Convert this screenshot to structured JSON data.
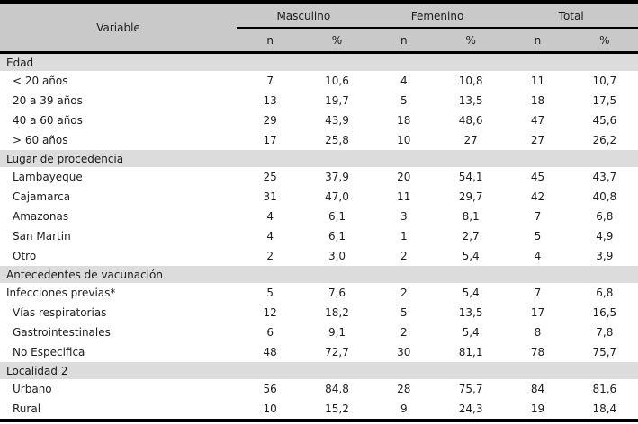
{
  "table": {
    "header": {
      "variable_label": "Variable",
      "groups": [
        {
          "label": "Masculino",
          "subcols": [
            "n",
            "%"
          ]
        },
        {
          "label": "Femenino",
          "subcols": [
            "n",
            "%"
          ]
        },
        {
          "label": "Total",
          "subcols": [
            "n",
            "%"
          ]
        }
      ]
    },
    "sections": [
      {
        "title": "Edad",
        "rows": [
          {
            "label": "< 20 años",
            "indent": 1,
            "values": [
              "7",
              "10,6",
              "4",
              "10,8",
              "11",
              "10,7"
            ]
          },
          {
            "label": "20 a 39 años",
            "indent": 1,
            "values": [
              "13",
              "19,7",
              "5",
              "13,5",
              "18",
              "17,5"
            ]
          },
          {
            "label": "40 a 60 años",
            "indent": 1,
            "values": [
              "29",
              "43,9",
              "18",
              "48,6",
              "47",
              "45,6"
            ]
          },
          {
            "label": "> 60 años",
            "indent": 1,
            "values": [
              "17",
              "25,8",
              "10",
              "27",
              "27",
              "26,2"
            ]
          }
        ]
      },
      {
        "title": "Lugar de procedencia",
        "rows": [
          {
            "label": "Lambayeque",
            "indent": 1,
            "values": [
              "25",
              "37,9",
              "20",
              "54,1",
              "45",
              "43,7"
            ]
          },
          {
            "label": "Cajamarca",
            "indent": 1,
            "values": [
              "31",
              "47,0",
              "11",
              "29,7",
              "42",
              "40,8"
            ]
          },
          {
            "label": "Amazonas",
            "indent": 1,
            "values": [
              "4",
              "6,1",
              "3",
              "8,1",
              "7",
              "6,8"
            ]
          },
          {
            "label": "San Martin",
            "indent": 1,
            "values": [
              "4",
              "6,1",
              "1",
              "2,7",
              "5",
              "4,9"
            ]
          },
          {
            "label": "Otro",
            "indent": 1,
            "values": [
              "2",
              "3,0",
              "2",
              "5,4",
              "4",
              "3,9"
            ]
          }
        ]
      },
      {
        "title": "Antecedentes de vacunación",
        "rows": [
          {
            "label": "Infecciones previas*",
            "indent": 0,
            "values": [
              "5",
              "7,6",
              "2",
              "5,4",
              "7",
              "6,8"
            ]
          },
          {
            "label": "Vías respiratorias",
            "indent": 1,
            "values": [
              "12",
              "18,2",
              "5",
              "13,5",
              "17",
              "16,5"
            ]
          },
          {
            "label": "Gastrointestinales",
            "indent": 1,
            "values": [
              "6",
              "9,1",
              "2",
              "5,4",
              "8",
              "7,8"
            ]
          },
          {
            "label": "No Especifica",
            "indent": 1,
            "values": [
              "48",
              "72,7",
              "30",
              "81,1",
              "78",
              "75,7"
            ]
          }
        ]
      },
      {
        "title": "Localidad 2",
        "rows": [
          {
            "label": "Urbano",
            "indent": 1,
            "values": [
              "56",
              "84,8",
              "28",
              "75,7",
              "84",
              "81,6"
            ]
          },
          {
            "label": "Rural",
            "indent": 1,
            "values": [
              "10",
              "15,2",
              "9",
              "24,3",
              "19",
              "18,4"
            ]
          }
        ]
      }
    ],
    "colors": {
      "header_bg": "#c9c9c9",
      "section_bg": "#dcdcdc",
      "border": "#000000",
      "text": "#1c1c1c"
    }
  }
}
